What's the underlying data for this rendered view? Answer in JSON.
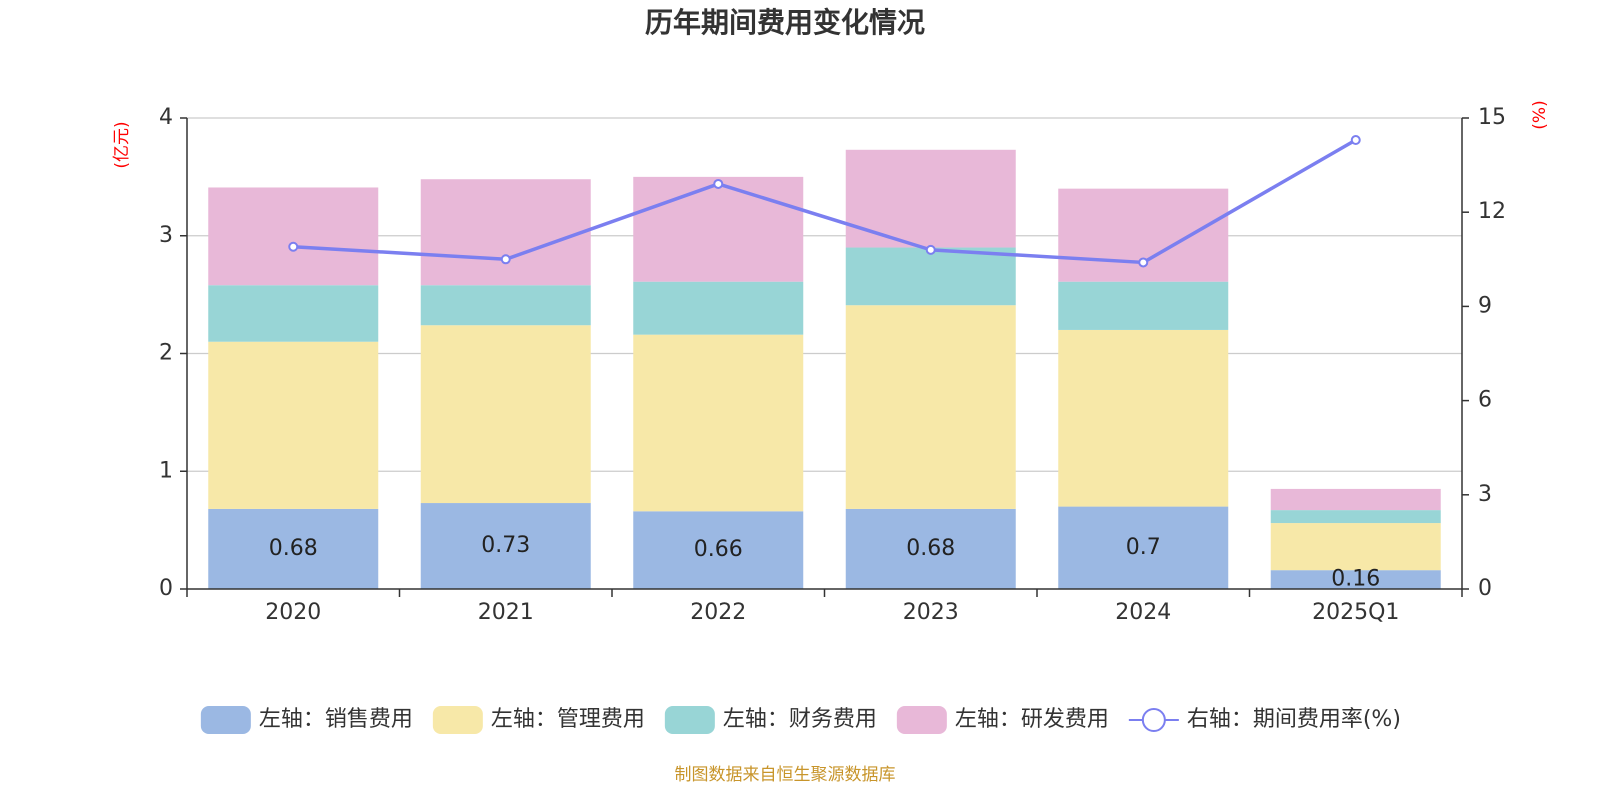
{
  "chart_data": {
    "type": "bar",
    "stacked": true,
    "title": "历年期间费用变化情况",
    "left_unit": "(亿元)",
    "right_unit": "(%)",
    "categories": [
      "2020",
      "2021",
      "2022",
      "2023",
      "2024",
      "2025Q1"
    ],
    "ylim_left": [
      0,
      4
    ],
    "yticks_left": [
      "0",
      "1",
      "2",
      "3",
      "4"
    ],
    "ylim_right": [
      0,
      15
    ],
    "yticks_right": [
      "0",
      "3",
      "6",
      "9",
      "12",
      "15"
    ],
    "grid": true,
    "legend_position": "bottom",
    "series": [
      {
        "name": "左轴：销售费用",
        "axis": "left",
        "color": "#9bb8e3",
        "values": [
          0.68,
          0.73,
          0.66,
          0.68,
          0.7,
          0.16
        ],
        "labels": [
          "0.68",
          "0.73",
          "0.66",
          "0.68",
          "0.7",
          "0.16"
        ]
      },
      {
        "name": "左轴：管理费用",
        "axis": "left",
        "color": "#f7e8a8",
        "values": [
          1.42,
          1.51,
          1.5,
          1.73,
          1.5,
          0.4
        ]
      },
      {
        "name": "左轴：财务费用",
        "axis": "left",
        "color": "#98d5d6",
        "values": [
          0.48,
          0.34,
          0.45,
          0.49,
          0.41,
          0.11
        ]
      },
      {
        "name": "左轴：研发费用",
        "axis": "left",
        "color": "#e8b8d8",
        "values": [
          0.83,
          0.9,
          0.89,
          0.83,
          0.79,
          0.18
        ]
      },
      {
        "name": "右轴：期间费用率(%)",
        "axis": "right",
        "type": "line",
        "color": "#7b7ff0",
        "values": [
          10.9,
          10.5,
          12.9,
          10.8,
          10.4,
          14.3
        ]
      }
    ],
    "source": "制图数据来自恒生聚源数据库"
  }
}
